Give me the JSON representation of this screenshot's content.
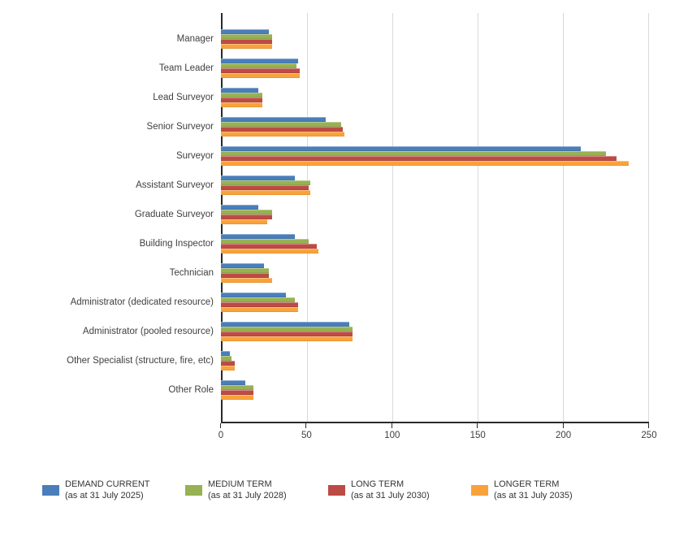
{
  "chart_data": {
    "type": "bar",
    "orientation": "horizontal",
    "title": "",
    "xlabel": "",
    "ylabel": "",
    "xlim": [
      0,
      250
    ],
    "x_ticks": [
      0,
      50,
      100,
      150,
      200,
      250
    ],
    "grid": true,
    "legend_position": "bottom",
    "categories": [
      "Manager",
      "Team Leader",
      "Lead Surveyor",
      "Senior Surveyor",
      "Surveyor",
      "Assistant Surveyor",
      "Graduate Surveyor",
      "Building Inspector",
      "Technician",
      "Administrator (dedicated resource)",
      "Administrator (pooled resource)",
      "Other Specialist (structure, fire, etc)",
      "Other Role"
    ],
    "series": [
      {
        "name": "DEMAND CURRENT",
        "subtitle": "(as at 31 July 2025)",
        "color": "#4A7EBB",
        "values": [
          28,
          45,
          22,
          61,
          210,
          43,
          22,
          43,
          25,
          38,
          75,
          5,
          14
        ]
      },
      {
        "name": "MEDIUM TERM",
        "subtitle": "(as at 31 July 2028)",
        "color": "#97B153",
        "values": [
          30,
          44,
          24,
          70,
          225,
          52,
          30,
          51,
          28,
          43,
          77,
          6,
          19
        ]
      },
      {
        "name": "LONG TERM",
        "subtitle": "(as at 31 July 2030)",
        "color": "#BD4B45",
        "values": [
          30,
          46,
          24,
          71,
          231,
          51,
          30,
          56,
          28,
          45,
          77,
          8,
          19
        ]
      },
      {
        "name": "LONGER TERM",
        "subtitle": "(as at 31 July 2035)",
        "color": "#F9A23B",
        "values": [
          30,
          46,
          24,
          72,
          238,
          52,
          27,
          57,
          30,
          45,
          77,
          8,
          19
        ]
      }
    ],
    "colors": {
      "gridline": "#d9d9d9",
      "axis_line": "#2a2a2a",
      "label_text": "#404040",
      "legend_text": "#333333",
      "background": "#ffffff"
    }
  }
}
